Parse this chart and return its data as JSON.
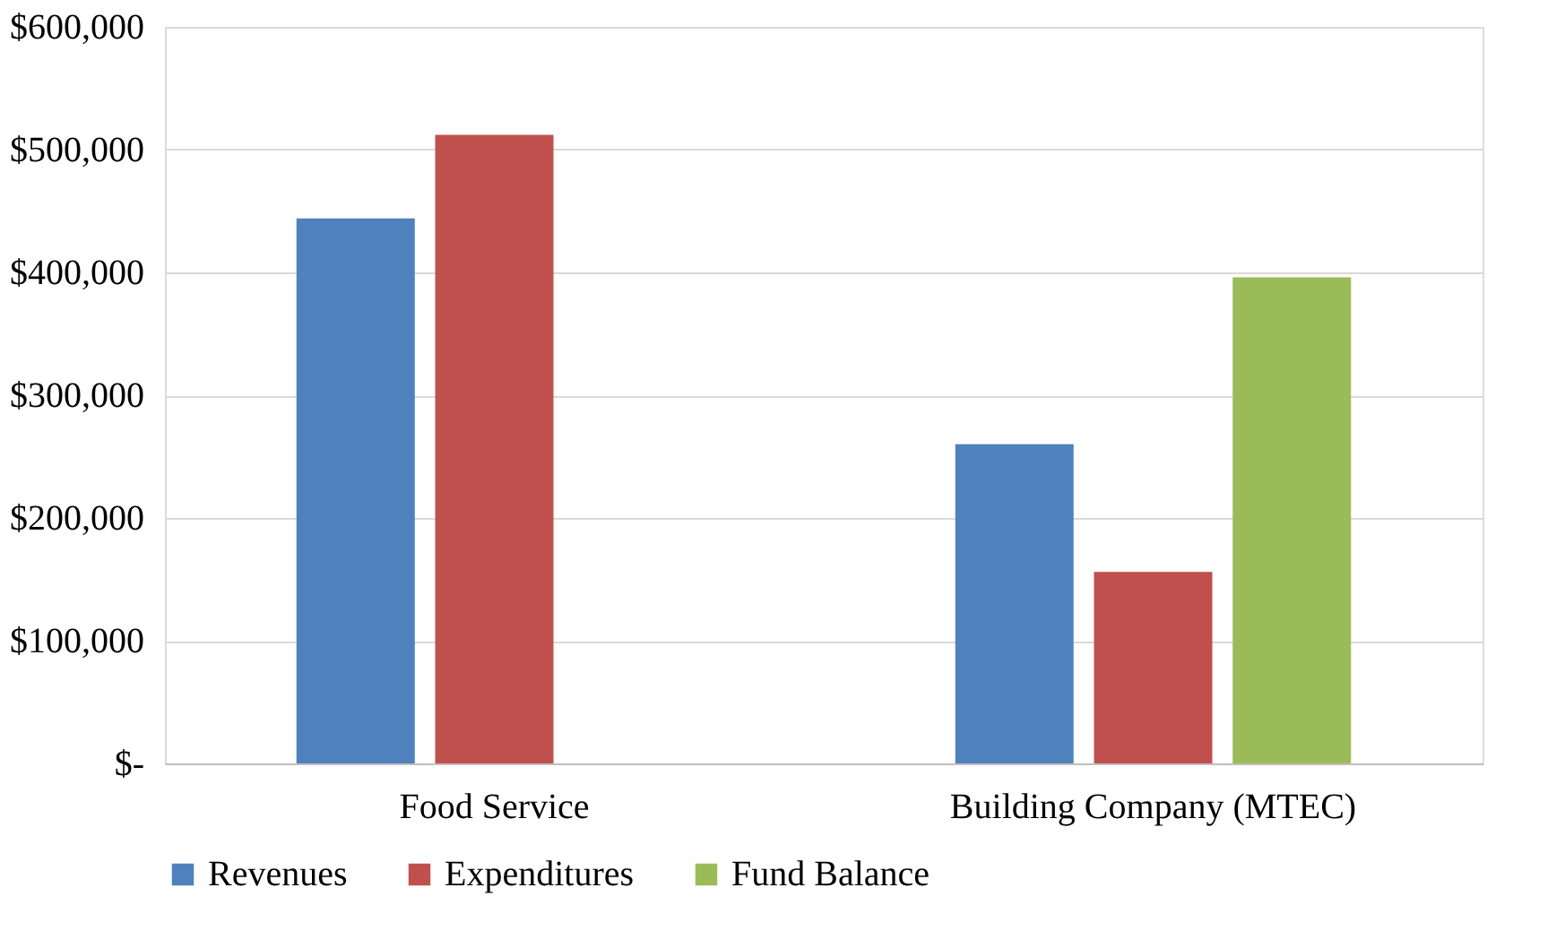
{
  "chart_data": {
    "type": "bar",
    "categories": [
      "Food Service",
      "Building Company (MTEC)"
    ],
    "series": [
      {
        "name": "Revenues",
        "color": "#4f81bd",
        "values": [
          444000,
          260000
        ]
      },
      {
        "name": "Expenditures",
        "color": "#c0504d",
        "values": [
          512000,
          156000
        ]
      },
      {
        "name": "Fund Balance",
        "color": "#9bbb59",
        "values": [
          null,
          396000
        ]
      }
    ],
    "ylim": [
      0,
      600000
    ],
    "yticks": [
      {
        "value": 0,
        "label": "$-"
      },
      {
        "value": 100000,
        "label": "$100,000"
      },
      {
        "value": 200000,
        "label": "$200,000"
      },
      {
        "value": 300000,
        "label": "$300,000"
      },
      {
        "value": 400000,
        "label": "$400,000"
      },
      {
        "value": 500000,
        "label": "$500,000"
      },
      {
        "value": 600000,
        "label": "$600,000"
      }
    ],
    "grid": "y",
    "legend": "bottom"
  }
}
